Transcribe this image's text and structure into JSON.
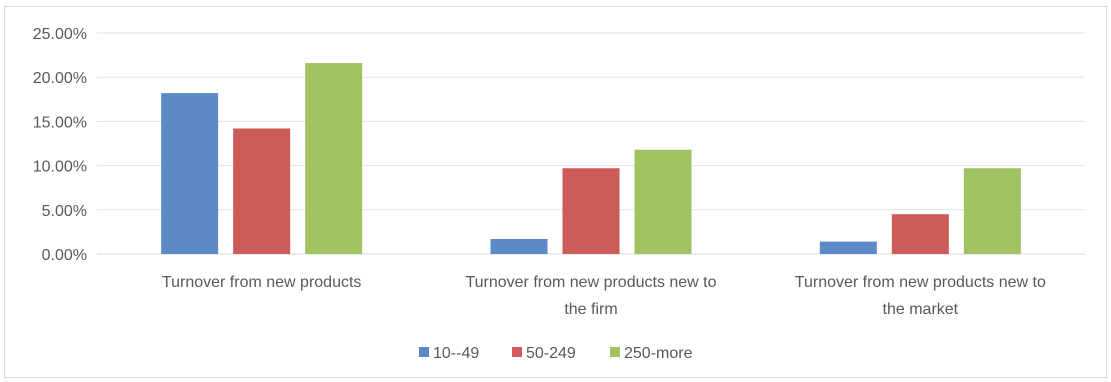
{
  "chart_data": {
    "type": "bar",
    "title": "",
    "xlabel": "",
    "ylabel": "",
    "ylim": [
      0,
      0.25
    ],
    "y_ticks": [
      0,
      0.05,
      0.1,
      0.15,
      0.2,
      0.25
    ],
    "y_tick_labels": [
      "0.00%",
      "5.00%",
      "10.00%",
      "15.00%",
      "20.00%",
      "25.00%"
    ],
    "grid": true,
    "legend_position": "bottom",
    "categories": [
      [
        "Turnover from new products"
      ],
      [
        "Turnover from new products  new to",
        "the firm"
      ],
      [
        "Turnover from new products new to",
        "the market"
      ]
    ],
    "series": [
      {
        "name": "10--49",
        "color": "#5b8ac6",
        "values": [
          0.182,
          0.017,
          0.014
        ]
      },
      {
        "name": "50-249",
        "color": "#cd5b58",
        "values": [
          0.142,
          0.097,
          0.045
        ]
      },
      {
        "name": "250-more",
        "color": "#a1c263",
        "values": [
          0.216,
          0.118,
          0.097
        ]
      }
    ]
  }
}
